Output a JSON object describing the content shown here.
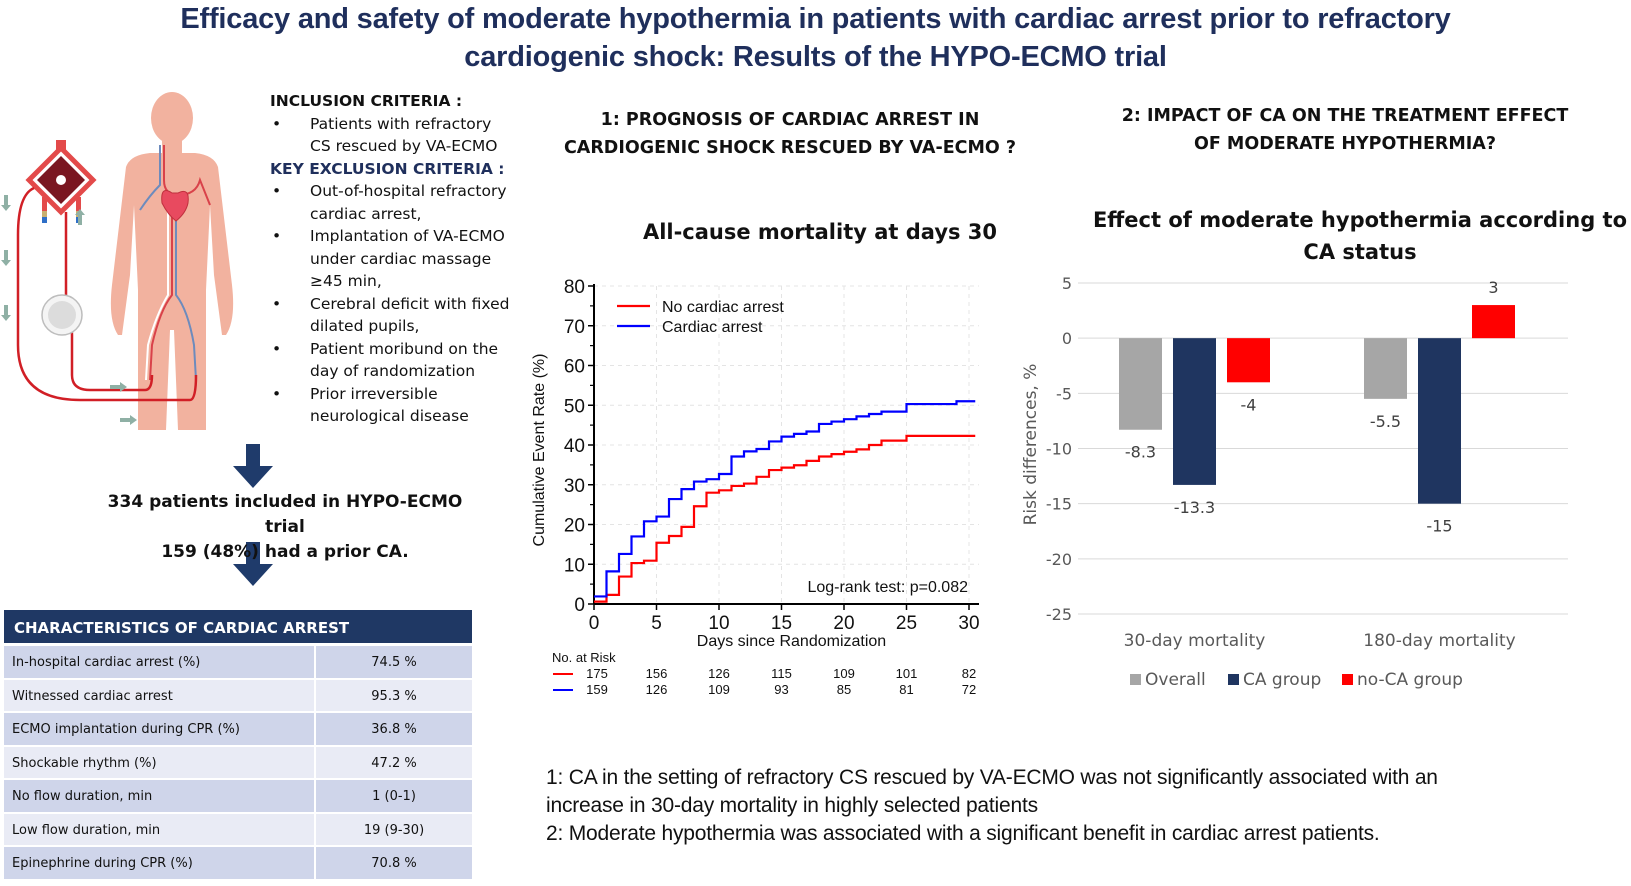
{
  "title": {
    "line1": "Efficacy and safety of moderate hypothermia in patients with cardiac arrest prior to refractory",
    "line2": "cardiogenic shock: Results of the HYPO-ECMO trial"
  },
  "criteria": {
    "inclusion_heading": "INCLUSION CRITERIA :",
    "inclusion": [
      "Patients with refractory CS rescued by VA-ECMO"
    ],
    "exclusion_heading": "KEY EXCLUSION CRITERIA :",
    "exclusion": [
      "Out-of-hospital refractory cardiac arrest,",
      "Implantation of VA-ECMO under cardiac massage ≥45 min,",
      "Cerebral deficit with fixed dilated pupils,",
      "Patient moribund on the day of randomization",
      "Prior irreversible neurological disease"
    ],
    "bullet": "•"
  },
  "enrollment": {
    "line1": "334 patients included in HYPO-ECMO trial",
    "line2": "159 (48%) had a prior CA."
  },
  "ca_table": {
    "header": "CHARACTERISTICS OF CARDIAC ARREST",
    "rows": [
      {
        "label": "In-hospital cardiac arrest (%)",
        "value": "74.5 %"
      },
      {
        "label": "Witnessed cardiac arrest",
        "value": "95.3 %"
      },
      {
        "label": "ECMO implantation during CPR (%)",
        "value": "36.8 %"
      },
      {
        "label": "Shockable rhythm (%)",
        "value": "47.2 %"
      },
      {
        "label": "No flow duration, min",
        "value": "1 (0-1)"
      },
      {
        "label": "Low flow duration, min",
        "value": "19 (9-30)"
      },
      {
        "label": "Epinephrine during CPR (%)",
        "value": "70.8 %"
      }
    ]
  },
  "section1": {
    "line1": "1: PROGNOSIS OF CARDIAC ARREST IN",
    "line2": "CARDIOGENIC SHOCK RESCUED BY VA-ECMO ?"
  },
  "section2": {
    "line1": "2: IMPACT OF CA ON THE TREATMENT EFFECT",
    "line2": "OF MODERATE HYPOTHERMIA?"
  },
  "colors": {
    "navy": "#1f3864",
    "title_navy": "#1f2f5c",
    "km_red": "#ff0000",
    "km_blue": "#0000ff",
    "bar_grey": "#a6a6a6",
    "bar_navy": "#1f3560",
    "bar_red": "#ff0000"
  },
  "chart_data": [
    {
      "type": "line",
      "title": "All-cause mortality at days 30",
      "xlabel": "Days since Randomization",
      "ylabel": "Cumulative Event Rate (%)",
      "xlim": [
        0,
        30
      ],
      "ylim": [
        0,
        80
      ],
      "xticks": [
        0,
        5,
        10,
        15,
        20,
        25,
        30
      ],
      "yticks": [
        0,
        10,
        20,
        30,
        40,
        50,
        60,
        70,
        80
      ],
      "grid": true,
      "step": true,
      "legend_position": "top-left",
      "annotation": "Log-rank test: p=0.082",
      "series": [
        {
          "name": "No cardiac arrest",
          "color": "#ff0000",
          "x": [
            0,
            1,
            2,
            3,
            4,
            5,
            6,
            7,
            8,
            9,
            10,
            11,
            12,
            13,
            14,
            15,
            16,
            17,
            18,
            19,
            20,
            21,
            22,
            23,
            25,
            30.5
          ],
          "y": [
            0.6,
            2.3,
            6.9,
            10.3,
            10.9,
            15.4,
            17.1,
            19.4,
            24.6,
            28.0,
            28.6,
            29.7,
            30.3,
            32.0,
            33.7,
            34.3,
            34.9,
            36.0,
            37.1,
            37.7,
            38.3,
            38.9,
            40.0,
            41.1,
            42.3,
            42.3
          ]
        },
        {
          "name": "Cardiac arrest",
          "color": "#0000ff",
          "x": [
            0,
            1,
            2,
            3,
            4,
            5,
            6,
            7,
            8,
            9,
            10,
            11,
            12,
            13,
            14,
            15,
            16,
            17,
            18,
            19,
            20,
            21,
            22,
            23,
            25,
            29,
            30.5
          ],
          "y": [
            1.9,
            8.2,
            12.6,
            17.0,
            20.8,
            22.0,
            26.4,
            28.9,
            30.8,
            31.4,
            32.7,
            37.1,
            38.4,
            39.0,
            40.9,
            42.1,
            42.8,
            43.4,
            45.3,
            45.9,
            46.5,
            47.2,
            47.8,
            48.4,
            50.3,
            51.0,
            51.0
          ]
        }
      ],
      "at_risk": {
        "label": "No. at Risk",
        "days": [
          0,
          5,
          10,
          15,
          20,
          25,
          30
        ],
        "no_cardiac_arrest": [
          175,
          156,
          126,
          115,
          109,
          101,
          82
        ],
        "cardiac_arrest": [
          159,
          126,
          109,
          93,
          85,
          81,
          72
        ]
      }
    },
    {
      "type": "bar",
      "title": "Effect of moderate hypothermia according to CA status",
      "title_line1": "Effect of moderate hypothermia according to",
      "title_line2": "CA status",
      "xlabel": "",
      "ylabel": "Risk differences, %",
      "ylim": [
        -25,
        5
      ],
      "yticks": [
        5,
        0,
        -5,
        -10,
        -15,
        -20,
        -25
      ],
      "grid": true,
      "legend_position": "bottom",
      "categories": [
        "30-day mortality",
        "180-day mortality"
      ],
      "series": [
        {
          "name": "Overall",
          "color": "#a6a6a6",
          "values": [
            -8.3,
            -5.5
          ],
          "labels": [
            "-8.3",
            "-5.5"
          ]
        },
        {
          "name": "CA group",
          "color": "#1f3560",
          "values": [
            -13.3,
            -15
          ],
          "labels": [
            "-13.3",
            "-15"
          ]
        },
        {
          "name": "no-CA group",
          "color": "#ff0000",
          "values": [
            -4,
            3
          ],
          "labels": [
            "-4",
            "3"
          ]
        }
      ]
    }
  ],
  "conclusions": {
    "line1": "1: CA in the setting of refractory CS rescued by VA-ECMO was not significantly associated with an",
    "line2": "increase in 30-day mortality in highly selected patients",
    "line3": "2: Moderate hypothermia was associated with a significant benefit in cardiac arrest patients."
  }
}
